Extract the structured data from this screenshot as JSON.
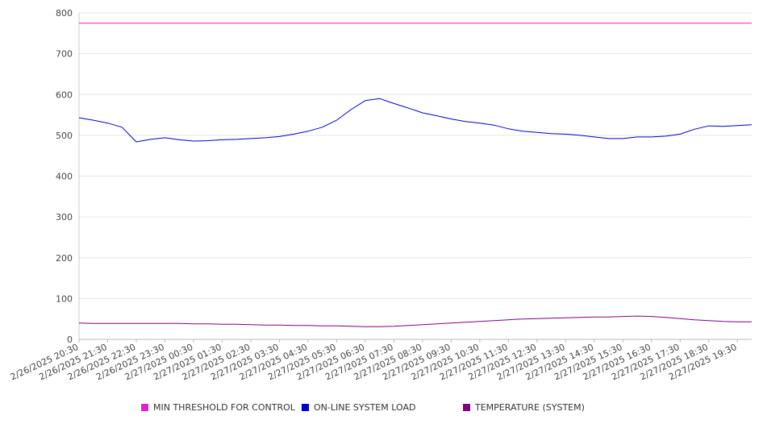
{
  "chart_data": {
    "type": "line",
    "title": "",
    "xlabel": "",
    "ylabel": "",
    "ylim": [
      0,
      800
    ],
    "yticks": [
      0,
      100,
      200,
      300,
      400,
      500,
      600,
      700,
      800
    ],
    "grid": true,
    "legend_position": "bottom",
    "x_tick_labels": [
      "2/26/2025 20:30",
      "2/26/2025 21:30",
      "2/26/2025 22:30",
      "2/26/2025 23:30",
      "2/27/2025 00:30",
      "2/27/2025 01:30",
      "2/27/2025 02:30",
      "2/27/2025 03:30",
      "2/27/2025 04:30",
      "2/27/2025 05:30",
      "2/27/2025 06:30",
      "2/27/2025 07:30",
      "2/27/2025 08:30",
      "2/27/2025 09:30",
      "2/27/2025 10:30",
      "2/27/2025 11:30",
      "2/27/2025 12:30",
      "2/27/2025 13:30",
      "2/27/2025 14:30",
      "2/27/2025 15:30",
      "2/27/2025 16:30",
      "2/27/2025 17:30",
      "2/27/2025 18:30",
      "2/27/2025 19:30"
    ],
    "x": [
      "2/26/2025 20:30",
      "2/26/2025 21:00",
      "2/26/2025 21:30",
      "2/26/2025 22:00",
      "2/26/2025 22:30",
      "2/26/2025 23:00",
      "2/26/2025 23:30",
      "2/27/2025 00:00",
      "2/27/2025 00:30",
      "2/27/2025 01:00",
      "2/27/2025 01:30",
      "2/27/2025 02:00",
      "2/27/2025 02:30",
      "2/27/2025 03:00",
      "2/27/2025 03:30",
      "2/27/2025 04:00",
      "2/27/2025 04:30",
      "2/27/2025 05:00",
      "2/27/2025 05:30",
      "2/27/2025 06:00",
      "2/27/2025 06:30",
      "2/27/2025 07:00",
      "2/27/2025 07:30",
      "2/27/2025 08:00",
      "2/27/2025 08:30",
      "2/27/2025 09:00",
      "2/27/2025 09:30",
      "2/27/2025 10:00",
      "2/27/2025 10:30",
      "2/27/2025 11:00",
      "2/27/2025 11:30",
      "2/27/2025 12:00",
      "2/27/2025 12:30",
      "2/27/2025 13:00",
      "2/27/2025 13:30",
      "2/27/2025 14:00",
      "2/27/2025 14:30",
      "2/27/2025 15:00",
      "2/27/2025 15:30",
      "2/27/2025 16:00",
      "2/27/2025 16:30",
      "2/27/2025 17:00",
      "2/27/2025 17:30",
      "2/27/2025 18:00",
      "2/27/2025 18:30",
      "2/27/2025 19:00",
      "2/27/2025 19:30",
      "2/27/2025 20:00"
    ],
    "series": [
      {
        "name": "MIN THRESHOLD FOR CONTROL",
        "color": "#e020d0",
        "values": [
          775,
          775,
          775,
          775,
          775,
          775,
          775,
          775,
          775,
          775,
          775,
          775,
          775,
          775,
          775,
          775,
          775,
          775,
          775,
          775,
          775,
          775,
          775,
          775,
          775,
          775,
          775,
          775,
          775,
          775,
          775,
          775,
          775,
          775,
          775,
          775,
          775,
          775,
          775,
          775,
          775,
          775,
          775,
          775,
          775,
          775,
          775,
          775
        ]
      },
      {
        "name": "ON-LINE SYSTEM LOAD",
        "color": "#0000cc",
        "values": [
          543,
          537,
          530,
          520,
          484,
          490,
          494,
          489,
          486,
          487,
          489,
          490,
          492,
          494,
          497,
          503,
          510,
          520,
          537,
          563,
          585,
          590,
          578,
          567,
          555,
          548,
          540,
          534,
          530,
          525,
          516,
          510,
          507,
          504,
          503,
          500,
          496,
          492,
          492,
          496,
          496,
          498,
          503,
          515,
          523,
          522,
          524,
          526
        ]
      },
      {
        "name": "TEMPERATURE (SYSTEM)",
        "color": "#800080",
        "values": [
          40,
          39,
          39,
          39,
          39,
          39,
          39,
          39,
          38,
          38,
          37,
          37,
          36,
          35,
          35,
          34,
          34,
          33,
          33,
          32,
          31,
          31,
          32,
          34,
          36,
          38,
          40,
          42,
          44,
          46,
          48,
          50,
          51,
          52,
          53,
          54,
          55,
          55,
          56,
          57,
          56,
          54,
          51,
          48,
          46,
          44,
          43,
          43
        ]
      }
    ]
  }
}
